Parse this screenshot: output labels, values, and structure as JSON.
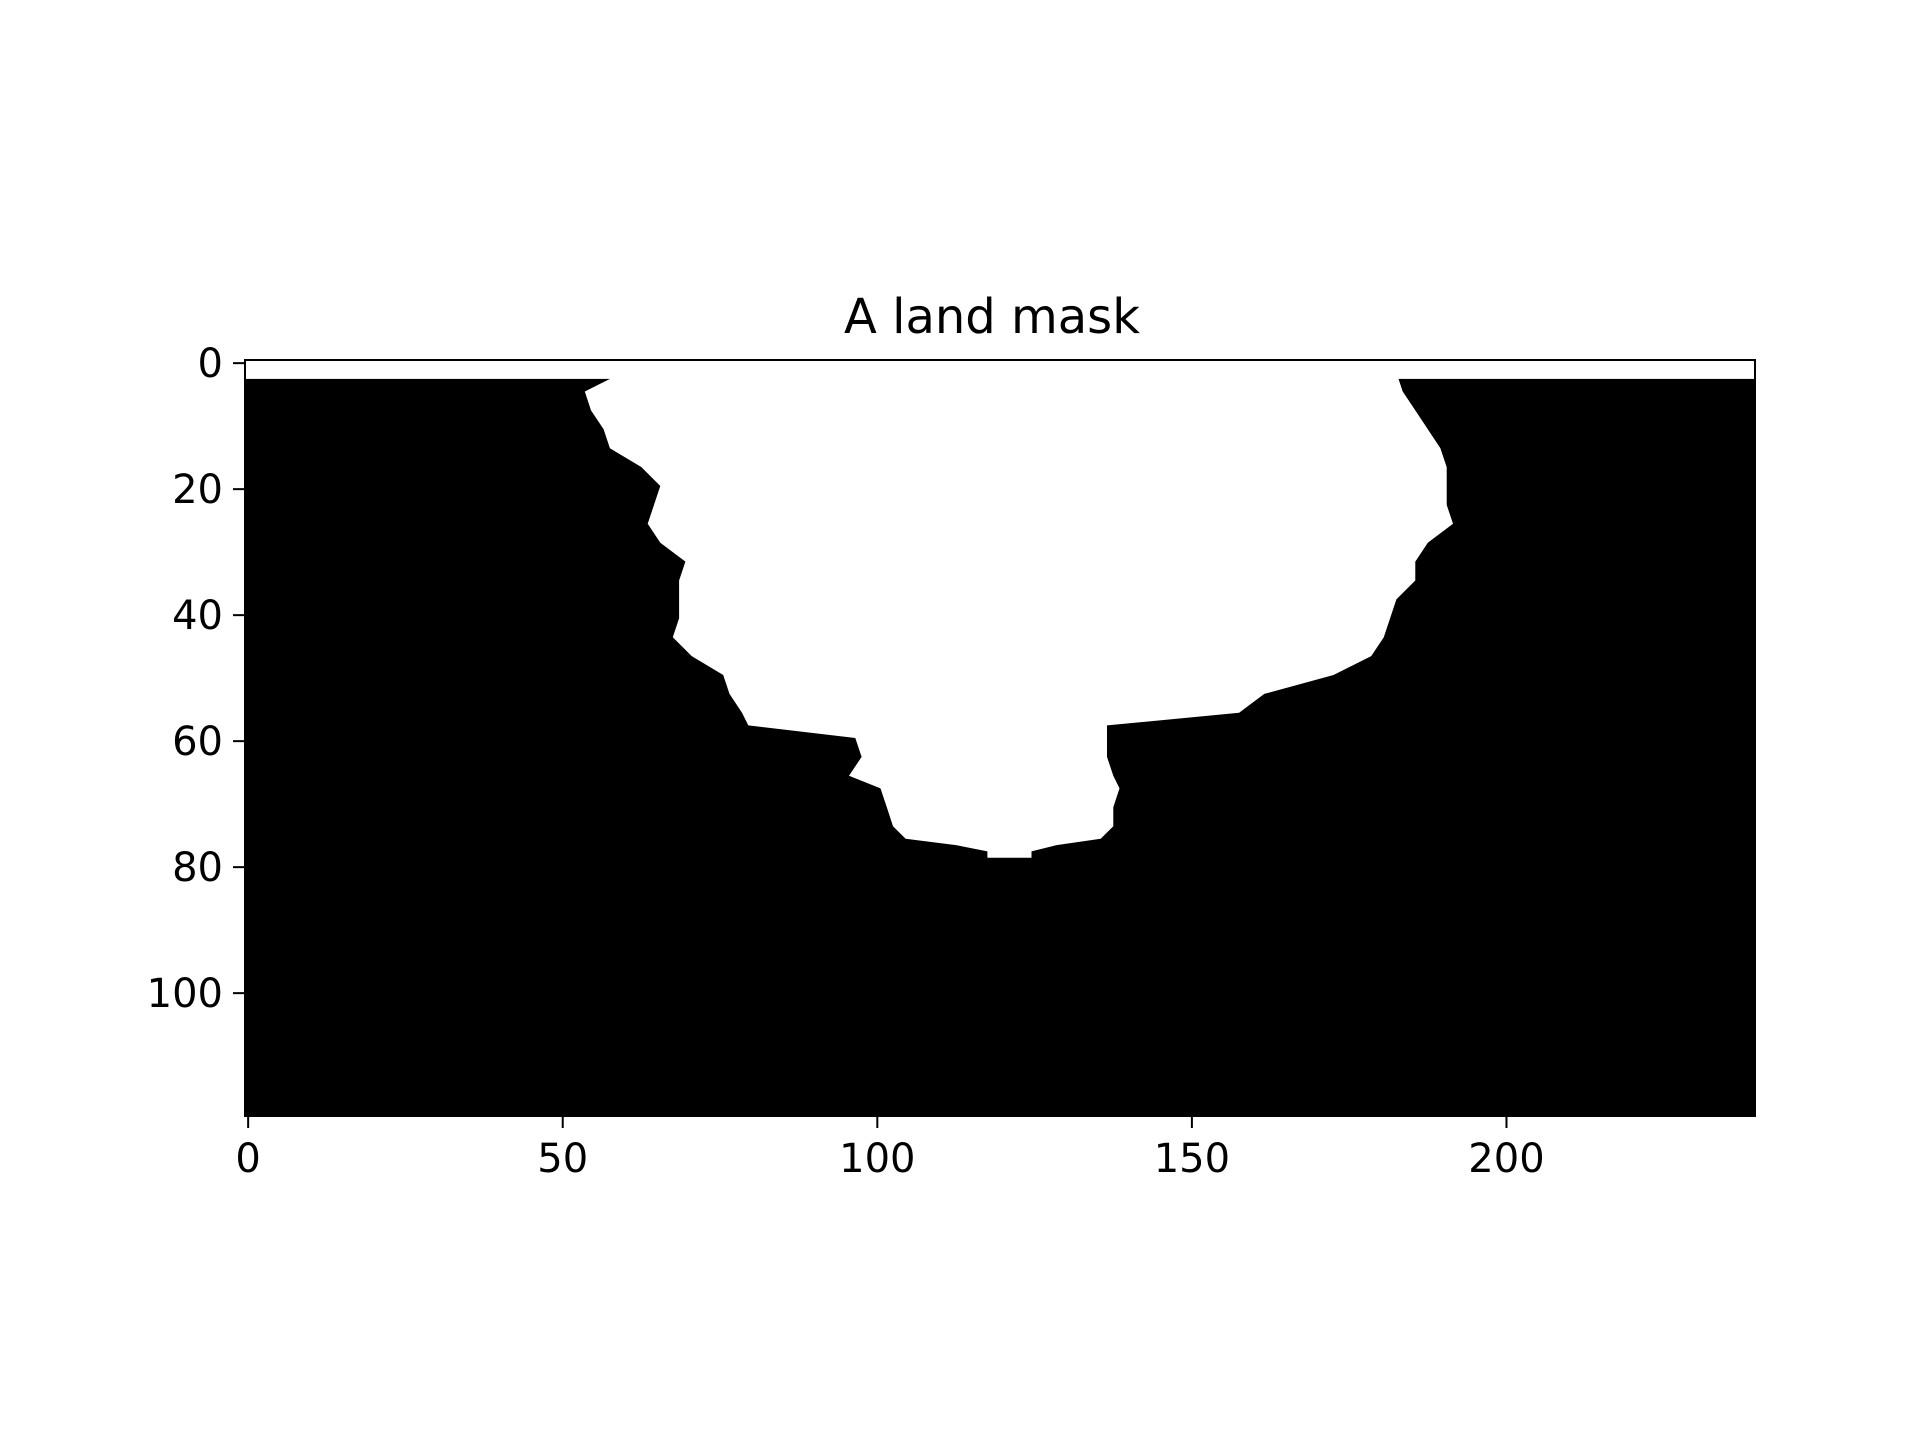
{
  "chart_data": {
    "type": "heatmap",
    "title": "A land mask",
    "xlabel": "",
    "ylabel": "",
    "grid": false,
    "colormap": [
      "#000000",
      "#ffffff"
    ],
    "xlim": [
      -0.5,
      239.5
    ],
    "ylim": [
      119.5,
      -0.5
    ],
    "xticks": [
      0,
      50,
      100,
      150,
      200
    ],
    "yticks": [
      0,
      20,
      40,
      60,
      80,
      100
    ],
    "description_values": "binary mask: white region = 1 (land), black = 0; boundary given as x extent of white per row",
    "top_band": {
      "rows": [
        0,
        2
      ],
      "x": [
        0,
        239
      ]
    },
    "land_boundary": [
      {
        "y": 2,
        "xl": 60,
        "xr": 182
      },
      {
        "y": 5,
        "xl": 54,
        "xr": 183
      },
      {
        "y": 8,
        "xl": 55,
        "xr": 185
      },
      {
        "y": 11,
        "xl": 57,
        "xr": 187
      },
      {
        "y": 14,
        "xl": 58,
        "xr": 189
      },
      {
        "y": 17,
        "xl": 63,
        "xr": 190
      },
      {
        "y": 20,
        "xl": 66,
        "xr": 190
      },
      {
        "y": 23,
        "xl": 65,
        "xr": 190
      },
      {
        "y": 26,
        "xl": 64,
        "xr": 191
      },
      {
        "y": 29,
        "xl": 66,
        "xr": 187
      },
      {
        "y": 32,
        "xl": 70,
        "xr": 185
      },
      {
        "y": 35,
        "xl": 69,
        "xr": 185
      },
      {
        "y": 38,
        "xl": 69,
        "xr": 182
      },
      {
        "y": 41,
        "xl": 69,
        "xr": 181
      },
      {
        "y": 44,
        "xl": 68,
        "xr": 180
      },
      {
        "y": 47,
        "xl": 71,
        "xr": 178
      },
      {
        "y": 50,
        "xl": 76,
        "xr": 172
      },
      {
        "y": 53,
        "xl": 77,
        "xr": 161
      },
      {
        "y": 56,
        "xl": 79,
        "xr": 157
      },
      {
        "y": 58,
        "xl": 80,
        "xr": 136
      },
      {
        "y": 60,
        "xl": 97,
        "xr": 136
      },
      {
        "y": 63,
        "xl": 98,
        "xr": 136
      },
      {
        "y": 66,
        "xl": 96,
        "xr": 137
      },
      {
        "y": 68,
        "xl": 101,
        "xr": 138
      },
      {
        "y": 71,
        "xl": 102,
        "xr": 137
      },
      {
        "y": 74,
        "xl": 103,
        "xr": 137
      },
      {
        "y": 76,
        "xl": 105,
        "xr": 135
      },
      {
        "y": 77,
        "xl": 113,
        "xr": 128
      },
      {
        "y": 78,
        "xl": 118,
        "xr": 124
      }
    ]
  }
}
